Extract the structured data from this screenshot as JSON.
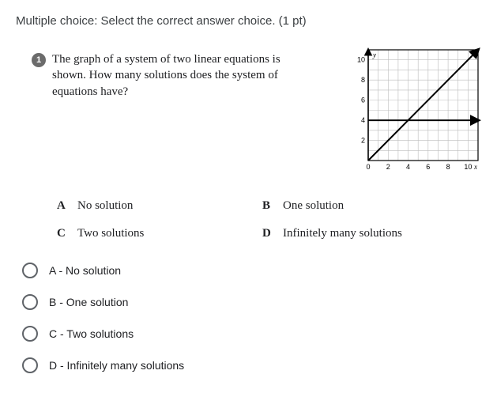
{
  "instruction": "Multiple choice: Select the correct answer choice. (1 pt)",
  "question": {
    "number": "1",
    "text": "The graph of a system of two linear equations is shown. How many solutions does the system of equations have?"
  },
  "chart": {
    "type": "line",
    "width": 165,
    "height": 160,
    "xlabel": "x",
    "ylabel": "y",
    "xlim": [
      0,
      11
    ],
    "ylim": [
      0,
      11
    ],
    "xticks": [
      0,
      2,
      4,
      6,
      8,
      10
    ],
    "yticks": [
      0,
      2,
      4,
      6,
      8,
      10
    ],
    "xtick_labels": [
      "0",
      "2",
      "4",
      "6",
      "8",
      "10"
    ],
    "ytick_labels": [
      "0",
      "2",
      "4",
      "6",
      "8",
      "10"
    ],
    "grid_color": "#bcbcbc",
    "axis_color": "#000000",
    "background_color": "#ffffff",
    "border_color": "#000000",
    "series": [
      {
        "type": "line",
        "points": [
          [
            0,
            0
          ],
          [
            11,
            11
          ]
        ],
        "color": "#000000",
        "width": 2,
        "arrow_end": true
      },
      {
        "type": "line",
        "points": [
          [
            0,
            4
          ],
          [
            11,
            4
          ]
        ],
        "color": "#000000",
        "width": 2,
        "arrow_end": true
      }
    ],
    "tick_fontsize": 9,
    "label_fontsize": 9
  },
  "answers": {
    "a": {
      "letter": "A",
      "text": "No solution"
    },
    "b": {
      "letter": "B",
      "text": "One solution"
    },
    "c": {
      "letter": "C",
      "text": "Two solutions"
    },
    "d": {
      "letter": "D",
      "text": "Infinitely many solutions"
    }
  },
  "radios": {
    "a": "A - No solution",
    "b": "B - One solution",
    "c": "C - Two solutions",
    "d": "D - Infinitely many solutions"
  }
}
